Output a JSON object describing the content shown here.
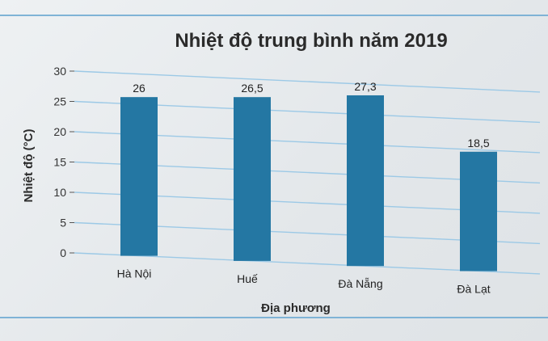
{
  "chart_data": {
    "type": "bar",
    "title": "Nhiệt độ trung bình năm 2019",
    "xlabel": "Địa phương",
    "ylabel": "Nhiệt độ (°C)",
    "categories": [
      "Hà Nội",
      "Huế",
      "Đà Nẵng",
      "Đà Lạt"
    ],
    "values": [
      26,
      26.5,
      27.3,
      18.5
    ],
    "value_labels": [
      "26",
      "26,5",
      "27,3",
      "18,5"
    ],
    "ylim": [
      0,
      30
    ],
    "yticks": [
      0,
      5,
      10,
      15,
      20,
      25,
      30
    ],
    "grid": true,
    "bar_color": "#2477a3"
  }
}
